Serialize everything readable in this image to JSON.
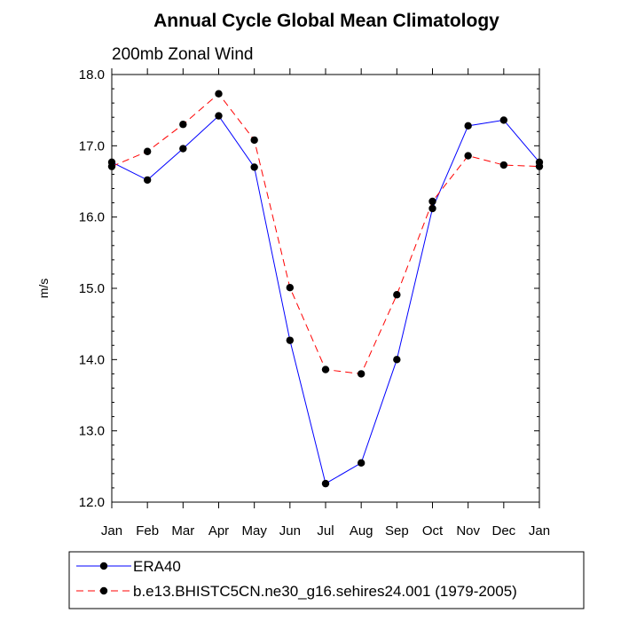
{
  "chart_data": {
    "type": "line",
    "title": "Annual Cycle Global Mean Climatology",
    "subtitle": "200mb Zonal Wind",
    "xlabel": "",
    "ylabel": "m/s",
    "categories": [
      "Jan",
      "Feb",
      "Mar",
      "Apr",
      "May",
      "Jun",
      "Jul",
      "Aug",
      "Sep",
      "Oct",
      "Nov",
      "Dec",
      "Jan"
    ],
    "ylim": [
      12.0,
      18.0
    ],
    "yticks": [
      "12.0",
      "13.0",
      "14.0",
      "15.0",
      "16.0",
      "17.0",
      "18.0"
    ],
    "grid": false,
    "legend_position": "bottom",
    "series": [
      {
        "name": "ERA40",
        "color": "#0000ff",
        "line_style": "solid",
        "marker": "filled-circle",
        "values": [
          16.77,
          16.52,
          16.96,
          17.42,
          16.7,
          14.27,
          12.26,
          12.55,
          14.0,
          16.12,
          17.28,
          17.36,
          16.77
        ]
      },
      {
        "name": "b.e13.BHISTC5CN.ne30_g16.sehires24.001 (1979-2005)",
        "color": "#ff0000",
        "line_style": "dashed",
        "marker": "filled-circle",
        "values": [
          16.71,
          16.92,
          17.3,
          17.73,
          17.08,
          15.01,
          13.86,
          13.8,
          14.91,
          16.22,
          16.86,
          16.73,
          16.71
        ]
      }
    ]
  }
}
